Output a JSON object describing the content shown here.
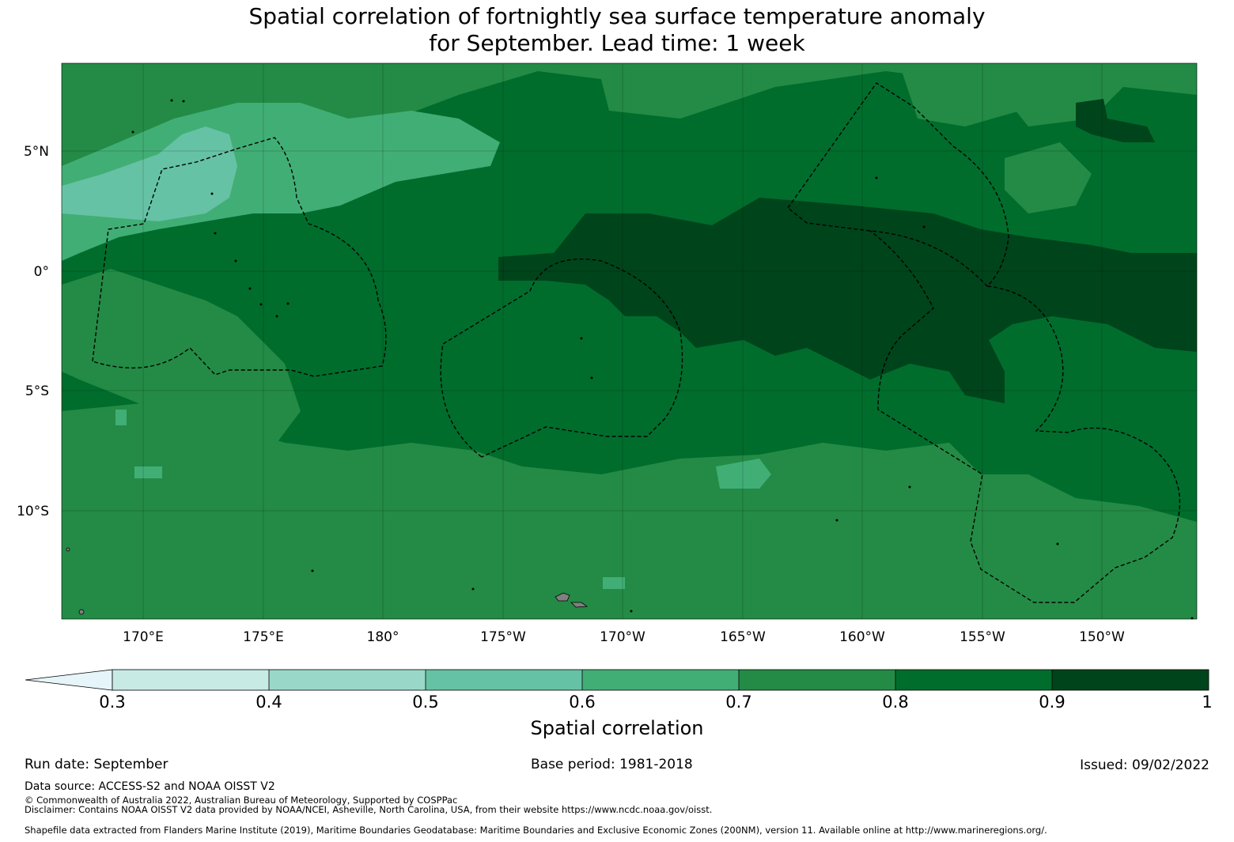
{
  "title": {
    "line1": "Spatial correlation of fortnightly sea surface temperature anomaly",
    "line2": "for September. Lead time: 1 week"
  },
  "map": {
    "lon_labels": [
      "170°E",
      "175°E",
      "180°",
      "175°W",
      "170°W",
      "165°W",
      "160°W",
      "155°W",
      "150°W"
    ],
    "lat_labels": [
      "5°N",
      "0°",
      "5°S",
      "10°S"
    ],
    "palette": {
      "lt0.3": "#e5f5f9",
      "0.3-0.4": "#c7eae4",
      "0.4-0.5": "#99d8c9",
      "0.5-0.6": "#66c2a4",
      "0.6-0.7": "#41ae76",
      "0.7-0.8": "#238b45",
      "0.8-0.9": "#006d2c",
      "0.9-1": "#00441b"
    },
    "land_color": "#808080",
    "boundary_style": "dashed black EEZ lines"
  },
  "colorbar": {
    "ticks": [
      "0.3",
      "0.4",
      "0.5",
      "0.6",
      "0.7",
      "0.8",
      "0.9",
      "1"
    ],
    "label": "Spatial correlation",
    "extend": "min"
  },
  "footer": {
    "run_date": "Run date: September",
    "base_period": "Base period: 1981-2018",
    "issued": "Issued: 09/02/2022",
    "data_source": "Data source: ACCESS-S2 and NOAA OISST V2",
    "copyright": "© Commonwealth of Australia 2022, Australian Bureau of Meteorology, Supported by COSPPac",
    "disclaimer": "Disclaimer: Contains NOAA OISST V2 data provided by NOAA/NCEI, Asheville, North Carolina, USA, from their website https://www.ncdc.noaa.gov/oisst.",
    "shapefile": "Shapefile data extracted from Flanders Marine Institute (2019), Maritime Boundaries Geodatabase: Maritime Boundaries and Exclusive Economic Zones (200NM), version 11. Available online at http://www.marineregions.org/."
  }
}
